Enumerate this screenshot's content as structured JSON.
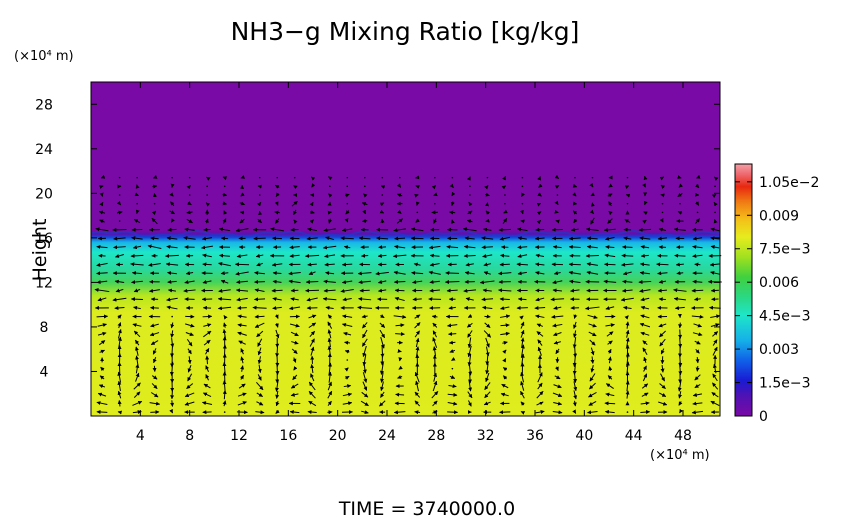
{
  "chart_data": {
    "type": "heatmap",
    "title": "NH3−g Mixing Ratio [kg/kg]",
    "ylabel": "Height",
    "y_unit_label": "(×10⁴ m)",
    "x_unit_label": "(×10⁴ m)",
    "x_ticks": [
      "4",
      "8",
      "12",
      "16",
      "20",
      "24",
      "28",
      "32",
      "36",
      "40",
      "44",
      "48"
    ],
    "x_tick_values": [
      4,
      8,
      12,
      16,
      20,
      24,
      28,
      32,
      36,
      40,
      44,
      48
    ],
    "y_ticks": [
      "4",
      "8",
      "12",
      "16",
      "20",
      "24",
      "28"
    ],
    "y_tick_values": [
      4,
      8,
      12,
      16,
      20,
      24,
      28
    ],
    "xlim": [
      0,
      51
    ],
    "ylim": [
      0,
      30
    ],
    "colorbar": {
      "labels": [
        "0",
        "1.5e−3",
        "0.003",
        "4.5e−3",
        "0.006",
        "7.5e−3",
        "0.009",
        "1.05e−2"
      ],
      "values": [
        0,
        0.0015,
        0.003,
        0.0045,
        0.006,
        0.0075,
        0.009,
        0.0105
      ],
      "vmin": 0,
      "vmax": 0.0113
    },
    "field_profile": [
      {
        "height": 0,
        "value": 0.0084
      },
      {
        "height": 9.5,
        "value": 0.0083
      },
      {
        "height": 11.5,
        "value": 0.0068
      },
      {
        "height": 13.0,
        "value": 0.0052
      },
      {
        "height": 15.3,
        "value": 0.0042
      },
      {
        "height": 16.2,
        "value": 0.0022
      },
      {
        "height": 16.5,
        "value": 0.0
      }
    ],
    "vector_field": "wind-vectors",
    "colors": {
      "low": "#7a0aa5",
      "mid": "#1ee6c8",
      "high": "#dfec1e"
    }
  },
  "footer": {
    "time_label": "TIME  =  3740000.0"
  }
}
